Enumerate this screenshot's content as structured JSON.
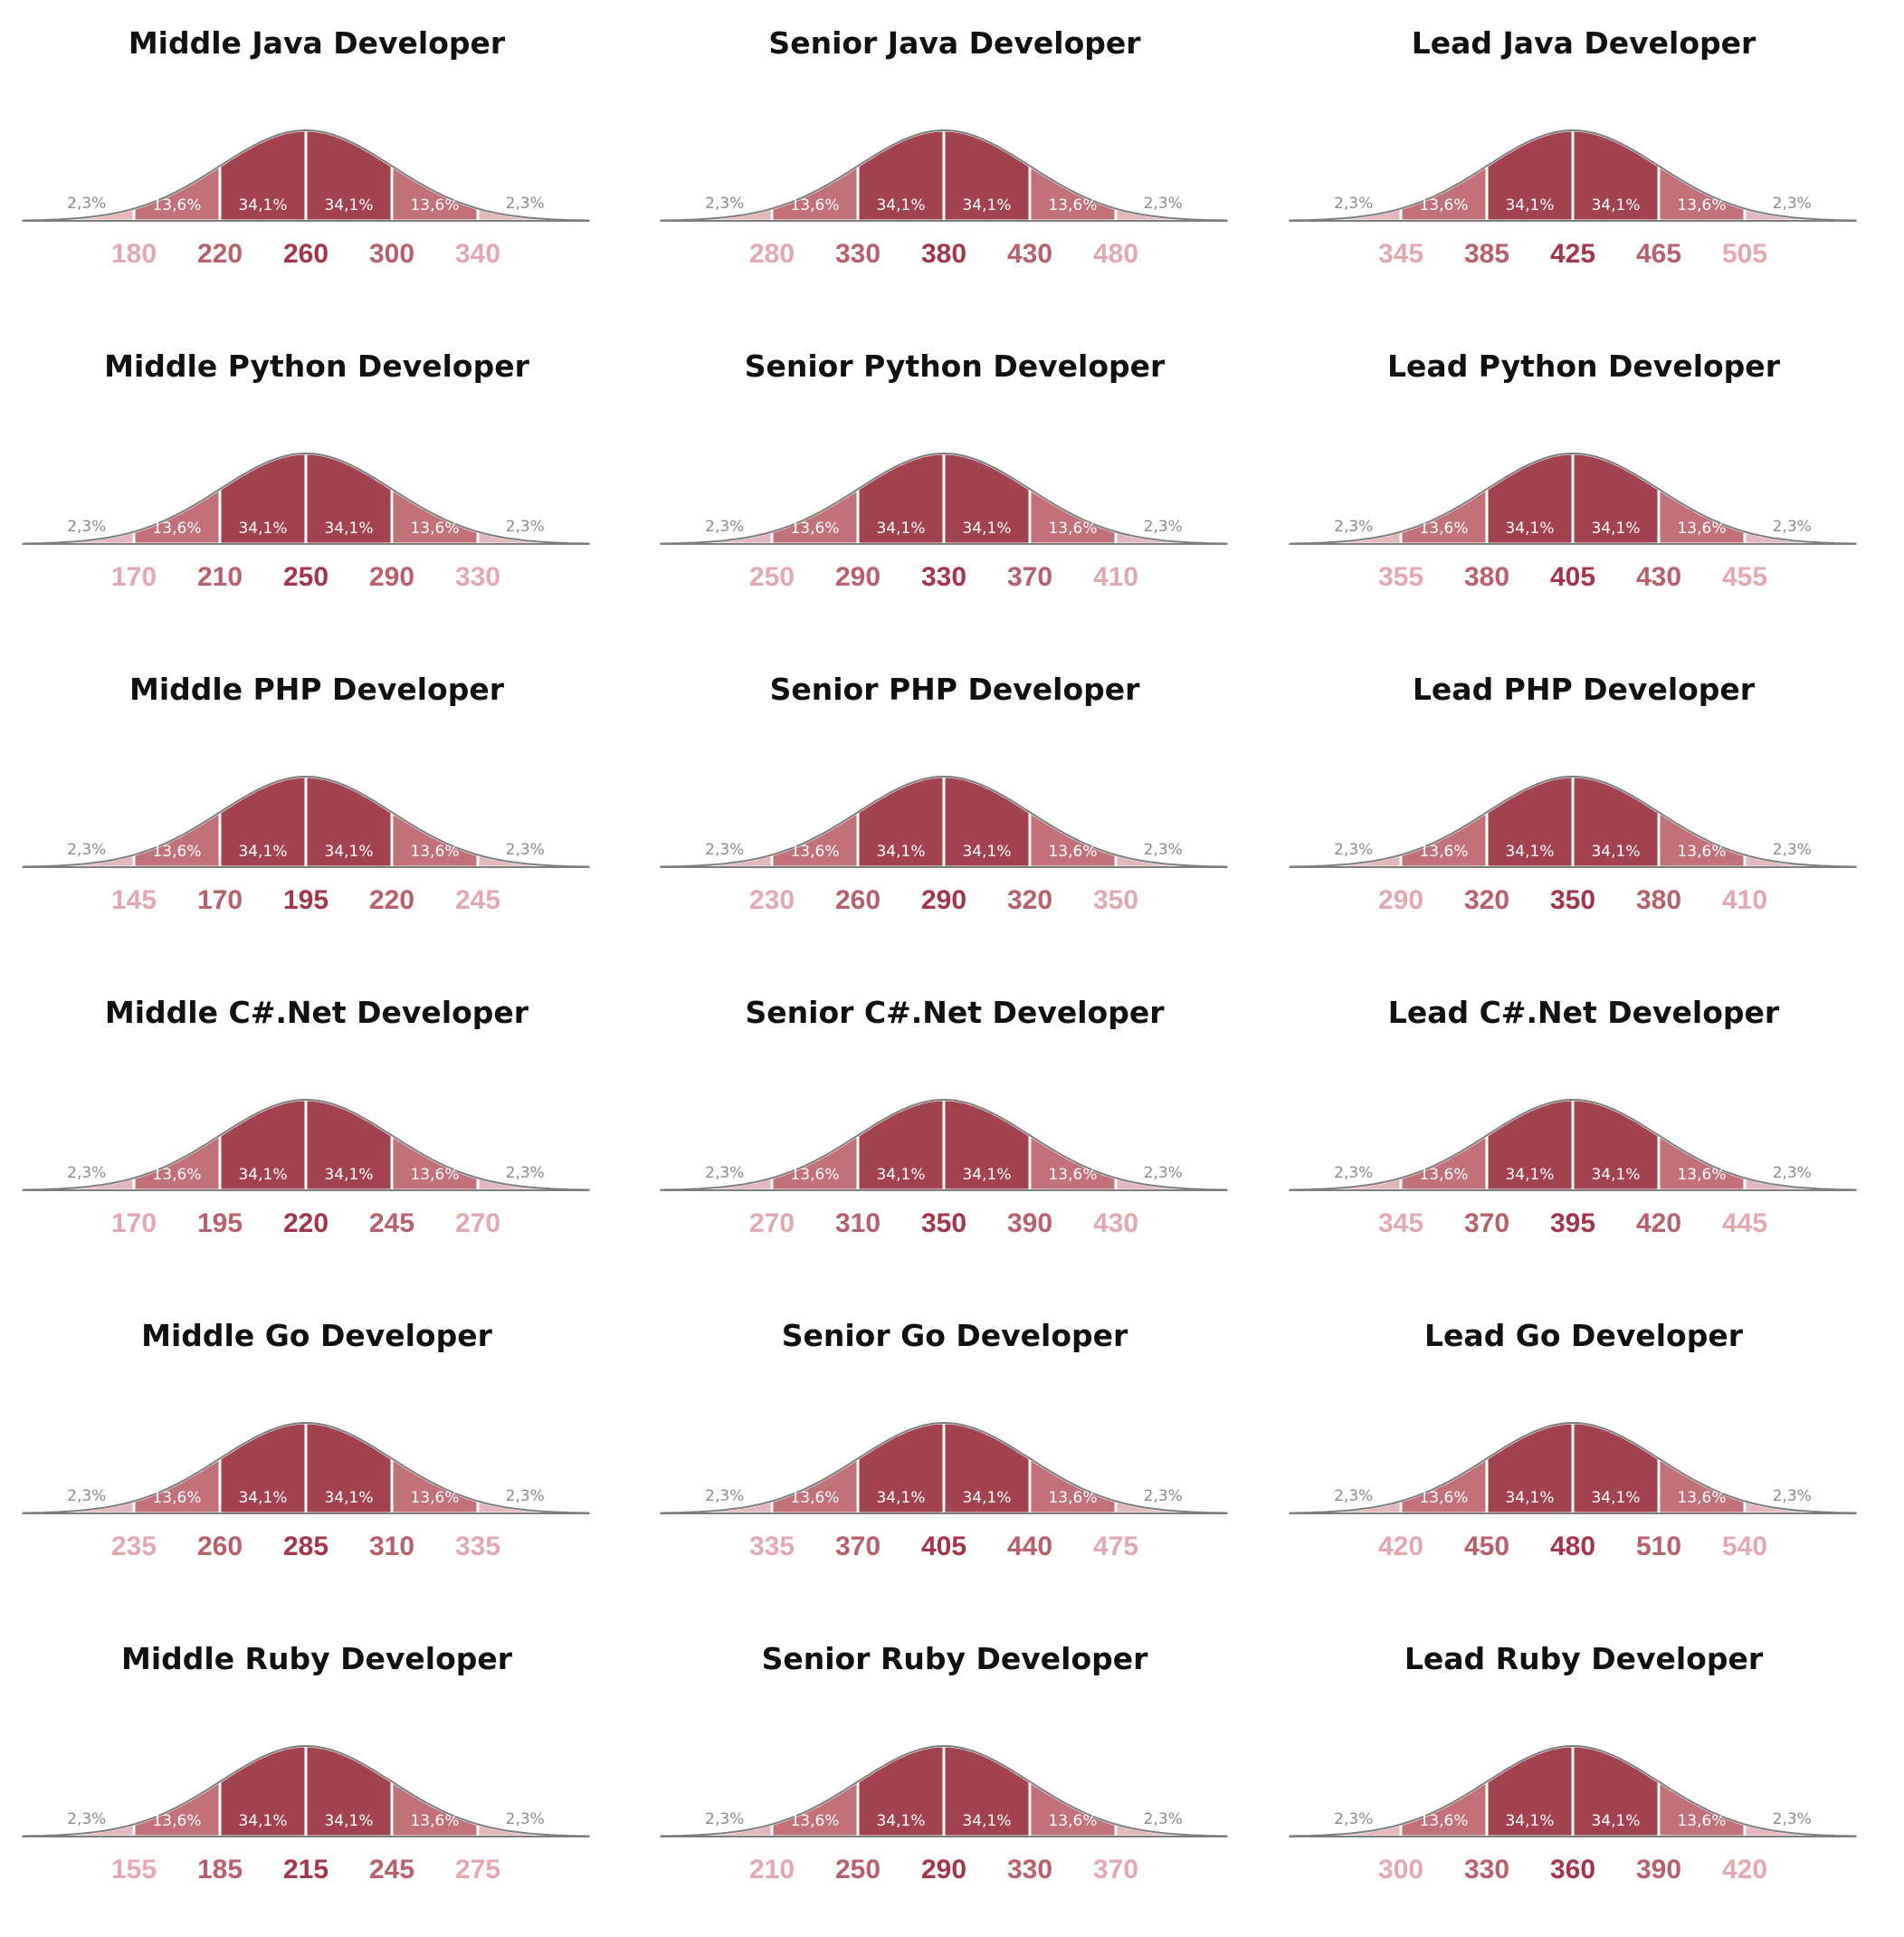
{
  "colors": {
    "band_center": "#a3424f",
    "band_inner": "#c27179",
    "band_tail": "#e4b7bc",
    "outline": "#7d7d7d",
    "label_light": "#ffffff",
    "label_tail": "#8c8c8c",
    "tick_center": "#a3364a",
    "tick_inner": "#b8606c",
    "tick_outer": "#e2a9b1"
  },
  "band_labels": [
    "2,3%",
    "13,6%",
    "34,1%",
    "34,1%",
    "13,6%",
    "2,3%"
  ],
  "chart_data": [
    {
      "type": "area",
      "title": "Middle Java Developer",
      "ticks": [
        180,
        220,
        260,
        300,
        340
      ]
    },
    {
      "type": "area",
      "title": "Senior Java Developer",
      "ticks": [
        280,
        330,
        380,
        430,
        480
      ]
    },
    {
      "type": "area",
      "title": "Lead Java Developer",
      "ticks": [
        345,
        385,
        425,
        465,
        505
      ]
    },
    {
      "type": "area",
      "title": "Middle Python Developer",
      "ticks": [
        170,
        210,
        250,
        290,
        330
      ]
    },
    {
      "type": "area",
      "title": "Senior Python Developer",
      "ticks": [
        250,
        290,
        330,
        370,
        410
      ]
    },
    {
      "type": "area",
      "title": "Lead Python Developer",
      "ticks": [
        355,
        380,
        405,
        430,
        455
      ]
    },
    {
      "type": "area",
      "title": "Middle PHP Developer",
      "ticks": [
        145,
        170,
        195,
        220,
        245
      ]
    },
    {
      "type": "area",
      "title": "Senior PHP Developer",
      "ticks": [
        230,
        260,
        290,
        320,
        350
      ]
    },
    {
      "type": "area",
      "title": "Lead PHP Developer",
      "ticks": [
        290,
        320,
        350,
        380,
        410
      ]
    },
    {
      "type": "area",
      "title": "Middle C#.Net Developer",
      "ticks": [
        170,
        195,
        220,
        245,
        270
      ]
    },
    {
      "type": "area",
      "title": "Senior C#.Net Developer",
      "ticks": [
        270,
        310,
        350,
        390,
        430
      ]
    },
    {
      "type": "area",
      "title": "Lead C#.Net Developer",
      "ticks": [
        345,
        370,
        395,
        420,
        445
      ]
    },
    {
      "type": "area",
      "title": "Middle Go Developer",
      "ticks": [
        235,
        260,
        285,
        310,
        335
      ]
    },
    {
      "type": "area",
      "title": "Senior Go Developer",
      "ticks": [
        335,
        370,
        405,
        440,
        475
      ]
    },
    {
      "type": "area",
      "title": "Lead Go Developer",
      "ticks": [
        420,
        450,
        480,
        510,
        540
      ]
    },
    {
      "type": "area",
      "title": "Middle Ruby Developer",
      "ticks": [
        155,
        185,
        215,
        245,
        275
      ]
    },
    {
      "type": "area",
      "title": "Senior Ruby Developer",
      "ticks": [
        210,
        250,
        290,
        330,
        370
      ]
    },
    {
      "type": "area",
      "title": "Lead Ruby Developer",
      "ticks": [
        300,
        330,
        360,
        390,
        420
      ]
    }
  ]
}
